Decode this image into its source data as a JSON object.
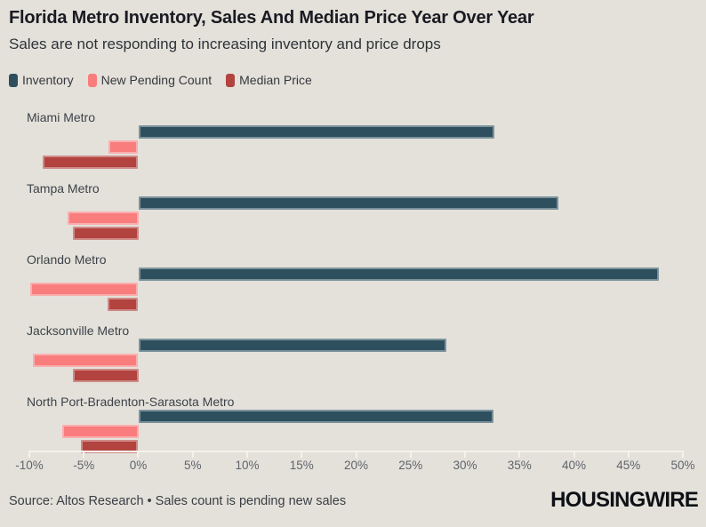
{
  "header": {
    "title": "Florida Metro Inventory, Sales And Median Price Year Over Year",
    "subtitle": "Sales are not responding to increasing inventory and price drops"
  },
  "chart_data": {
    "type": "bar",
    "orientation": "horizontal",
    "title": "Florida Metro Inventory, Sales And Median Price Year Over Year",
    "subtitle": "Sales are not responding to increasing inventory and price drops",
    "categories": [
      "Miami Metro",
      "Tampa Metro",
      "Orlando Metro",
      "Jacksonville Metro",
      "North Port-Bradenton-Sarasota Metro"
    ],
    "series": [
      {
        "name": "Inventory",
        "color": "#2d4f5e",
        "values": [
          32.7,
          38.6,
          47.8,
          28.3,
          32.6
        ]
      },
      {
        "name": "New Pending Count",
        "color": "#f97d7d",
        "values": [
          -2.7,
          -6.5,
          -9.9,
          -9.7,
          -7.0
        ]
      },
      {
        "name": "Median Price",
        "color": "#b2433e",
        "values": [
          -8.8,
          -6.0,
          -2.8,
          -6.0,
          -5.3
        ]
      }
    ],
    "xlim": [
      -10,
      50
    ],
    "x_tick_values": [
      -10,
      -5,
      0,
      5,
      10,
      15,
      20,
      25,
      30,
      35,
      40,
      45,
      50
    ],
    "x_ticks": [
      "-10%",
      "-5%",
      "0%",
      "5%",
      "10%",
      "15%",
      "20%",
      "25%",
      "30%",
      "35%",
      "40%",
      "45%",
      "50%"
    ],
    "legend_position": "top",
    "grid": false,
    "unit": "%"
  },
  "footer": {
    "source": "Source: Altos Research • Sales count is pending new sales",
    "logo": "HOUSINGWIRE"
  },
  "colors": {
    "background": "#e4e1db",
    "inventory": "#2d4f5e",
    "new_pending": "#f97d7d",
    "median_price": "#b2433e",
    "axis_line": "#f5f2ec"
  }
}
